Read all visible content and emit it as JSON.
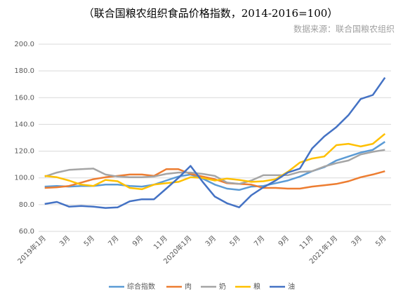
{
  "chart_data": {
    "type": "line",
    "title": "（联合国粮农组织食品价格指数，2014-2016=100）",
    "source": "数据来源：联合国粮农组织",
    "categories": [
      "2019年1月",
      null,
      "3月",
      null,
      "5月",
      null,
      "7月",
      null,
      "9月",
      null,
      "11月",
      null,
      "2020年1月",
      null,
      "3月",
      null,
      "5月",
      null,
      "7月",
      null,
      "9月",
      null,
      "11月",
      null,
      "2021年1月",
      null,
      "3月",
      null,
      "5月"
    ],
    "series": [
      {
        "name": "综合指数",
        "color": "#5b9bd5",
        "values": [
          93.5,
          94,
          93.5,
          94,
          94,
          95,
          95,
          94,
          93.5,
          95,
          98,
          101,
          102.5,
          99.5,
          95,
          92,
          91,
          93.5,
          94,
          96,
          98,
          101,
          105,
          108,
          113,
          116,
          119,
          121,
          127
        ]
      },
      {
        "name": "肉",
        "color": "#ed7d31",
        "values": [
          92.5,
          93,
          94,
          96.5,
          99,
          100.5,
          101.5,
          102.5,
          102.5,
          101.5,
          106.5,
          106.5,
          103,
          101,
          99,
          96,
          95.5,
          95,
          92.5,
          92.5,
          92,
          92,
          93.5,
          94.5,
          95.5,
          97.5,
          100.5,
          102.5,
          105
        ]
      },
      {
        "name": "奶",
        "color": "#a5a5a5",
        "values": [
          101,
          104,
          106,
          106.5,
          107,
          102.5,
          101,
          100.5,
          100.5,
          101,
          103,
          104,
          104,
          103,
          101.5,
          96.5,
          95.5,
          98,
          102,
          102,
          102,
          104.5,
          105,
          108.5,
          111,
          113,
          117.5,
          119.5,
          121
        ]
      },
      {
        "name": "粮",
        "color": "#ffc000",
        "values": [
          101.5,
          100.5,
          98,
          95,
          94,
          98.5,
          97.5,
          92.5,
          91.5,
          95,
          96,
          97,
          100.5,
          100,
          98,
          99.5,
          98.5,
          97,
          97.5,
          99,
          104.5,
          111.5,
          114.5,
          116,
          124.5,
          125.5,
          123.5,
          125.5,
          133
        ]
      },
      {
        "name": "油",
        "color": "#4472c4",
        "values": [
          80.5,
          82,
          78.5,
          79,
          78.5,
          77.5,
          78,
          82.5,
          84,
          84,
          92,
          100,
          109,
          97,
          86,
          81,
          78,
          87,
          93,
          98,
          104,
          107,
          122,
          131,
          138,
          147,
          159,
          162,
          175
        ]
      }
    ],
    "ylim": [
      60,
      200
    ],
    "yticks": [
      {
        "value": 60,
        "label": "60.0"
      },
      {
        "value": 80,
        "label": "80.0"
      },
      {
        "value": 100,
        "label": "100.0"
      },
      {
        "value": 120,
        "label": "120.0"
      },
      {
        "value": 140,
        "label": "140.0"
      },
      {
        "value": 160,
        "label": "160.0"
      },
      {
        "value": 180,
        "label": "180.0"
      },
      {
        "value": 200,
        "label": "200.0"
      }
    ],
    "grid": true,
    "legend": "bottom"
  }
}
